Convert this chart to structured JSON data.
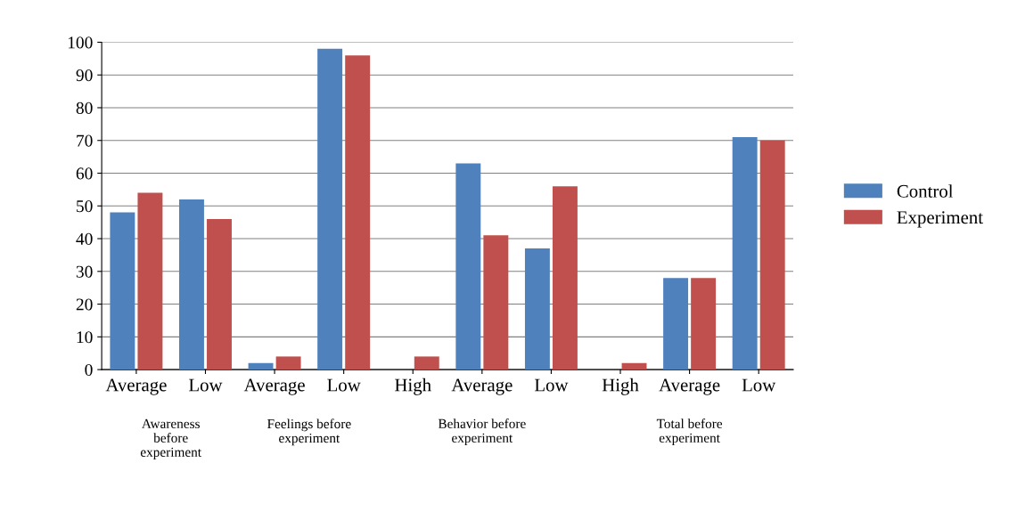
{
  "chart_data": {
    "type": "bar",
    "categories": [
      "Average",
      "Low",
      "Average",
      "Low",
      "High",
      "Average",
      "Low",
      "High",
      "Average",
      "Low"
    ],
    "series": [
      {
        "name": "Control",
        "color": "#4f81bd",
        "values": [
          48,
          52,
          2,
          98,
          0,
          63,
          37,
          0,
          28,
          71
        ]
      },
      {
        "name": "Experiment",
        "color": "#c0504d",
        "values": [
          54,
          46,
          4,
          96,
          4,
          41,
          56,
          2,
          28,
          70
        ]
      }
    ],
    "ylim": [
      0,
      100
    ],
    "yticks": [
      0,
      10,
      20,
      30,
      40,
      50,
      60,
      70,
      80,
      90,
      100
    ],
    "grid": "y",
    "legend": "right",
    "annotations": [
      "Awareness before experiment",
      "Feelings before experiment",
      "Behavior before experiment",
      "Total before experiment"
    ]
  }
}
